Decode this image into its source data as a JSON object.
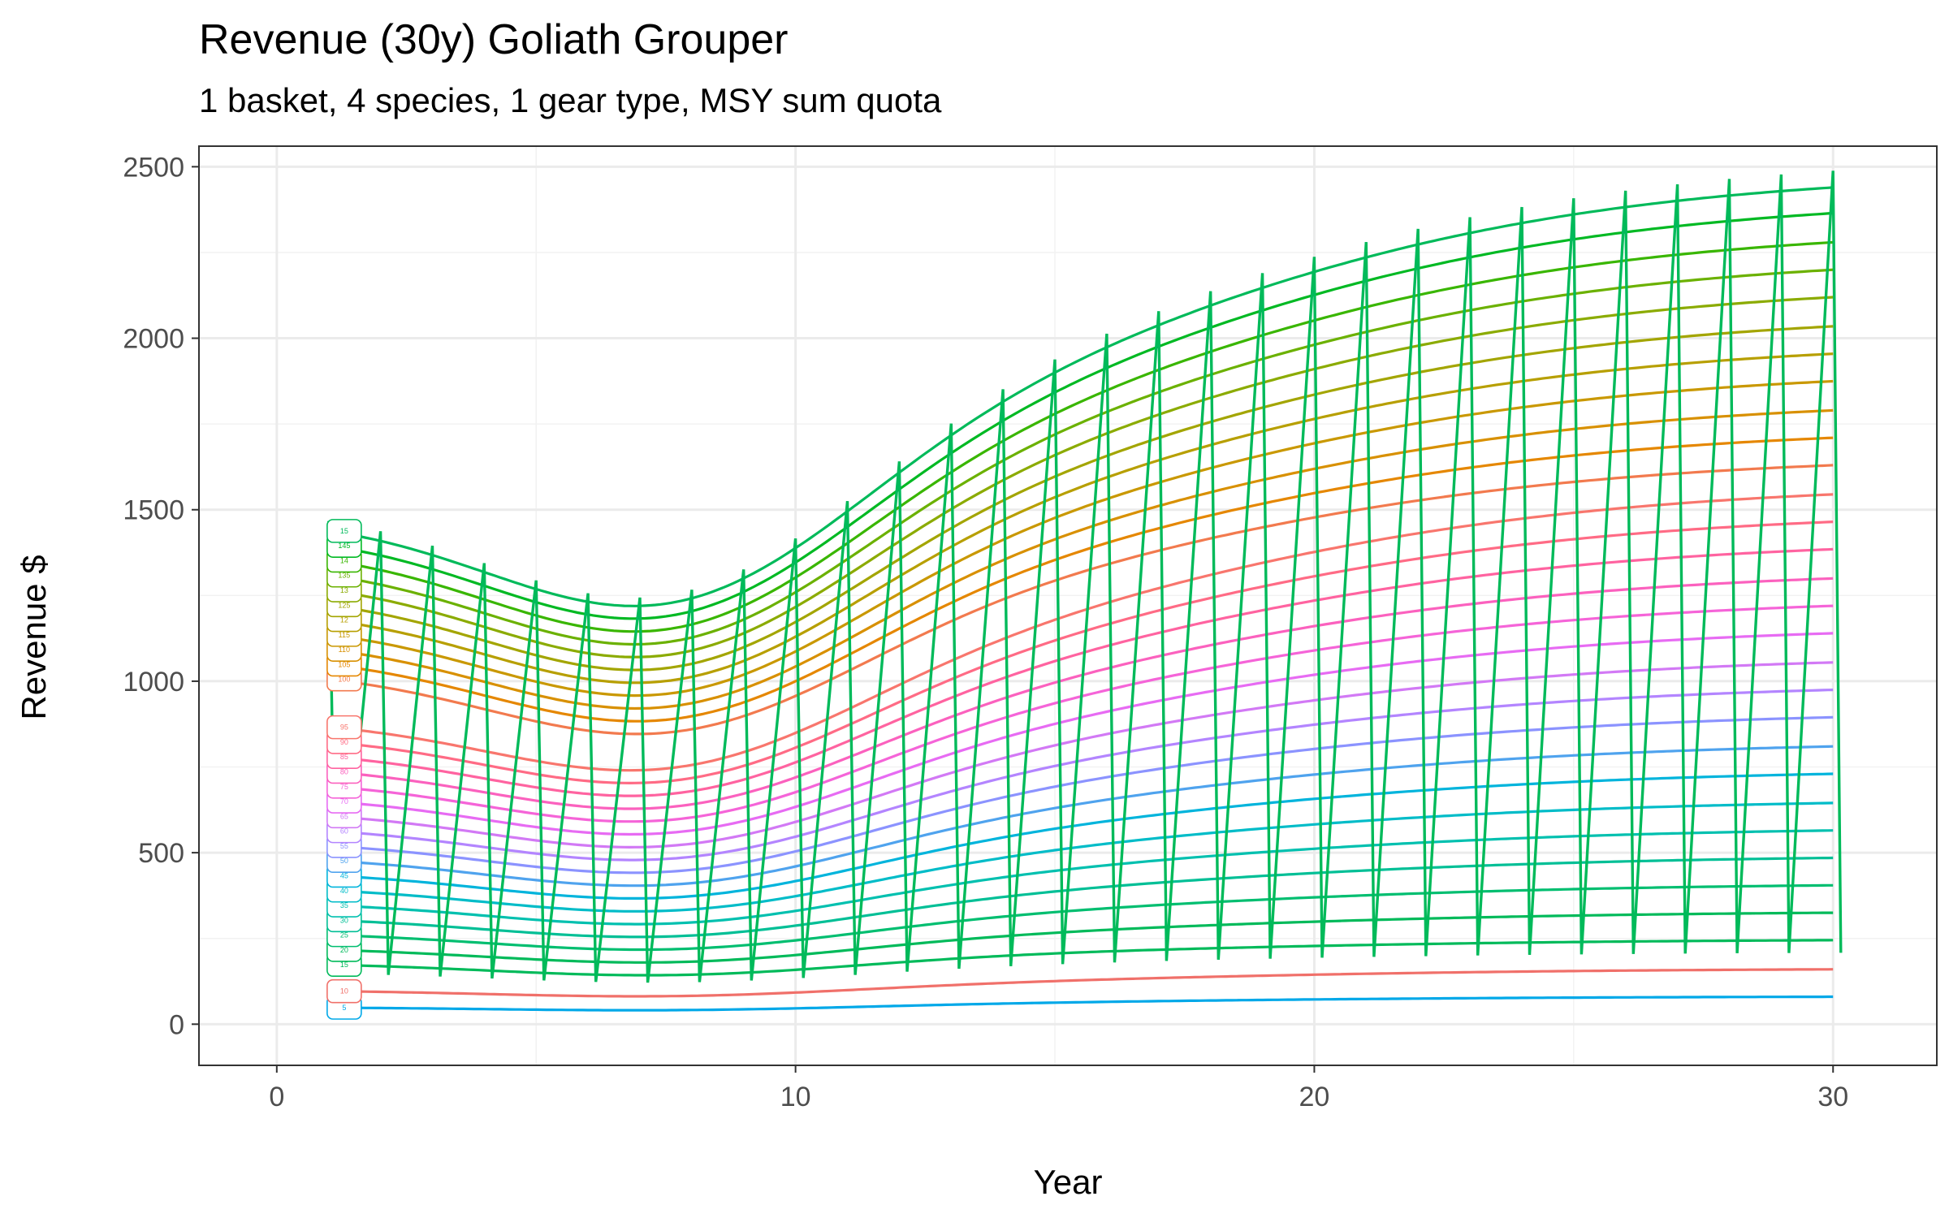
{
  "chart_data": {
    "type": "line",
    "title": "Revenue (30y) Goliath Grouper",
    "subtitle": "1 basket, 4 species, 1 gear type, MSY sum quota",
    "xlabel": "Year",
    "ylabel": "Revenue $",
    "xlim": [
      -1.5,
      32
    ],
    "ylim": [
      -120,
      2560
    ],
    "x_ticks": [
      0,
      10,
      20,
      30
    ],
    "y_ticks": [
      0,
      500,
      1000,
      1500,
      2000,
      2500
    ],
    "x_tick_labels": [
      "0",
      "10",
      "20",
      "30"
    ],
    "y_tick_labels": [
      "0",
      "500",
      "1000",
      "1500",
      "2000",
      "2500"
    ],
    "grid": true,
    "legend": "none",
    "years": [
      1,
      2,
      3,
      4,
      5,
      6,
      7,
      8,
      9,
      10,
      11,
      12,
      13,
      14,
      15,
      16,
      17,
      18,
      19,
      20,
      21,
      22,
      23,
      24,
      25,
      26,
      27,
      28,
      29,
      30
    ],
    "zigzag_color": "#00BA5A",
    "series": [
      {
        "label": "5",
        "color": "#00A8E8",
        "start": 50,
        "end": 80
      },
      {
        "label": "10",
        "color": "#F0706A",
        "start": 100,
        "end": 160
      },
      {
        "label": "15",
        "color": "#00BA5A",
        "start": 180,
        "end": 245
      },
      {
        "label": "20",
        "color": "#00BA5A",
        "start": 225,
        "end": 325
      },
      {
        "label": "25",
        "color": "#00BE70",
        "start": 270,
        "end": 405
      },
      {
        "label": "30",
        "color": "#00BF96",
        "start": 315,
        "end": 485
      },
      {
        "label": "35",
        "color": "#00C0AF",
        "start": 360,
        "end": 565
      },
      {
        "label": "40",
        "color": "#00BCC8",
        "start": 405,
        "end": 645
      },
      {
        "label": "45",
        "color": "#00B4DC",
        "start": 450,
        "end": 730
      },
      {
        "label": "50",
        "color": "#4FA3EE",
        "start": 495,
        "end": 810
      },
      {
        "label": "55",
        "color": "#8B93FF",
        "start": 540,
        "end": 895
      },
      {
        "label": "60",
        "color": "#B385FF",
        "start": 585,
        "end": 975
      },
      {
        "label": "65",
        "color": "#D279F5",
        "start": 630,
        "end": 1055
      },
      {
        "label": "70",
        "color": "#E76BF3",
        "start": 675,
        "end": 1140
      },
      {
        "label": "75",
        "color": "#F564D8",
        "start": 720,
        "end": 1220
      },
      {
        "label": "80",
        "color": "#FB61BE",
        "start": 765,
        "end": 1300
      },
      {
        "label": "85",
        "color": "#FF63A0",
        "start": 810,
        "end": 1385
      },
      {
        "label": "90",
        "color": "#FF6B85",
        "start": 855,
        "end": 1465
      },
      {
        "label": "95",
        "color": "#F8766D",
        "start": 900,
        "end": 1545
      },
      {
        "label": "100",
        "color": "#F27A4E",
        "start": 1045,
        "end": 1630
      },
      {
        "label": "105",
        "color": "#E58700",
        "start": 1090,
        "end": 1710
      },
      {
        "label": "110",
        "color": "#D89000",
        "start": 1135,
        "end": 1790
      },
      {
        "label": "115",
        "color": "#C99800",
        "start": 1180,
        "end": 1875
      },
      {
        "label": "12",
        "color": "#B79F00",
        "start": 1225,
        "end": 1955
      },
      {
        "label": "125",
        "color": "#A3A500",
        "start": 1270,
        "end": 2035
      },
      {
        "label": "13",
        "color": "#8BAB00",
        "start": 1315,
        "end": 2120
      },
      {
        "label": "135",
        "color": "#6BB100",
        "start": 1360,
        "end": 2200
      },
      {
        "label": "14",
        "color": "#39B600",
        "start": 1405,
        "end": 2280
      },
      {
        "label": "145",
        "color": "#00B923",
        "start": 1450,
        "end": 2365
      },
      {
        "label": "15",
        "color": "#00BA5A",
        "start": 1495,
        "end": 2440
      }
    ]
  }
}
